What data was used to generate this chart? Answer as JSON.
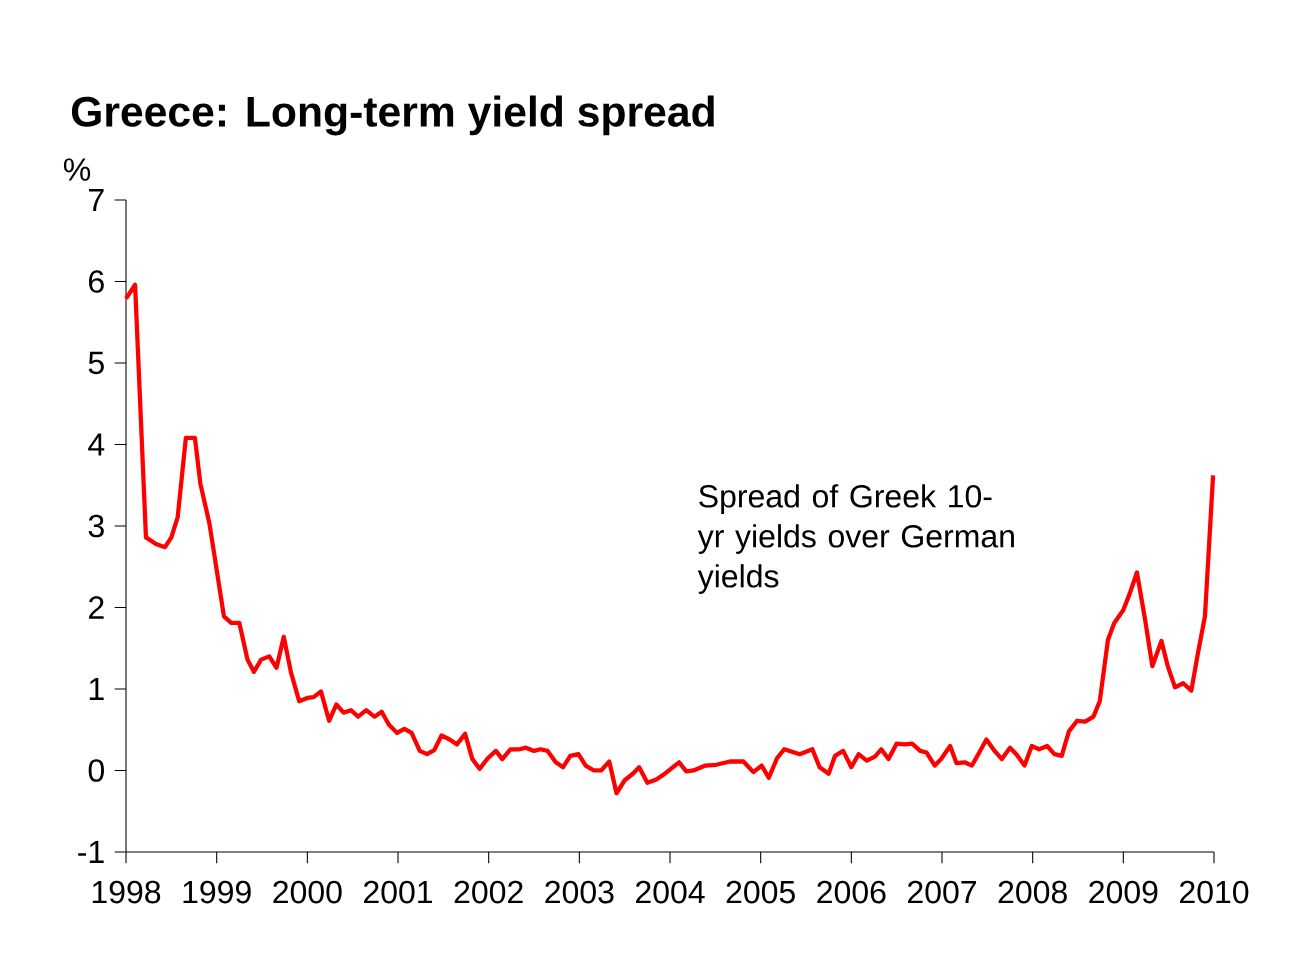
{
  "chart_data": {
    "type": "line",
    "title": "Greece: Long-term yield spread",
    "ylabel": "%",
    "annotations": [
      "Spread of Greek 10-yr yields over German yields"
    ],
    "series": [
      {
        "color": "#ff0000",
        "x": [
          1998.0,
          1998.1,
          1998.22,
          1998.33,
          1998.43,
          1998.5,
          1998.57,
          1998.66,
          1998.76,
          1998.82,
          1998.92,
          1999.08,
          1999.16,
          1999.25,
          1999.34,
          1999.41,
          1999.49,
          1999.58,
          1999.66,
          1999.74,
          1999.82,
          1999.91,
          2000.0,
          2000.07,
          2000.15,
          2000.24,
          2000.32,
          2000.4,
          2000.48,
          2000.56,
          2000.65,
          2000.74,
          2000.82,
          2000.9,
          2000.99,
          2001.07,
          2001.15,
          2001.24,
          2001.32,
          2001.4,
          2001.48,
          2001.57,
          2001.65,
          2001.74,
          2001.82,
          2001.9,
          2001.99,
          2002.08,
          2002.15,
          2002.24,
          2002.34,
          2002.41,
          2002.5,
          2002.57,
          2002.65,
          2002.74,
          2002.82,
          2002.9,
          2002.99,
          2003.07,
          2003.16,
          2003.24,
          2003.33,
          2003.41,
          2003.5,
          2003.59,
          2003.66,
          2003.75,
          2003.85,
          2003.93,
          2004.1,
          2004.18,
          2004.26,
          2004.39,
          2004.51,
          2004.66,
          2004.81,
          2004.92,
          2005.01,
          2005.09,
          2005.18,
          2005.26,
          2005.43,
          2005.57,
          2005.65,
          2005.75,
          2005.82,
          2005.91,
          2006.0,
          2006.08,
          2006.17,
          2006.26,
          2006.33,
          2006.41,
          2006.5,
          2006.59,
          2006.67,
          2006.76,
          2006.83,
          2006.92,
          2006.99,
          2007.09,
          2007.16,
          2007.25,
          2007.33,
          2007.4,
          2007.49,
          2007.58,
          2007.66,
          2007.75,
          2007.82,
          2007.91,
          2007.99,
          2008.07,
          2008.16,
          2008.24,
          2008.32,
          2008.4,
          2008.49,
          2008.58,
          2008.67,
          2008.74,
          2008.83,
          2008.9,
          2009.0,
          2009.07,
          2009.15,
          2009.24,
          2009.32,
          2009.42,
          2009.49,
          2009.57,
          2009.66,
          2009.75,
          2009.82,
          2009.9,
          2009.99
        ],
        "values": [
          5.79,
          5.96,
          2.86,
          2.78,
          2.74,
          2.86,
          3.11,
          4.08,
          4.08,
          3.52,
          3.03,
          1.89,
          1.81,
          1.81,
          1.36,
          1.21,
          1.36,
          1.4,
          1.26,
          1.64,
          1.2,
          0.85,
          0.89,
          0.9,
          0.97,
          0.61,
          0.81,
          0.71,
          0.74,
          0.66,
          0.74,
          0.66,
          0.72,
          0.56,
          0.46,
          0.51,
          0.46,
          0.24,
          0.2,
          0.25,
          0.43,
          0.38,
          0.32,
          0.45,
          0.14,
          0.02,
          0.15,
          0.24,
          0.14,
          0.26,
          0.26,
          0.28,
          0.24,
          0.26,
          0.24,
          0.1,
          0.04,
          0.18,
          0.2,
          0.06,
          0.0,
          0.0,
          0.11,
          -0.28,
          -0.12,
          -0.04,
          0.04,
          -0.15,
          -0.11,
          -0.05,
          0.1,
          -0.01,
          0.0,
          0.06,
          0.07,
          0.11,
          0.11,
          -0.02,
          0.06,
          -0.09,
          0.15,
          0.26,
          0.2,
          0.26,
          0.04,
          -0.04,
          0.18,
          0.24,
          0.04,
          0.2,
          0.12,
          0.17,
          0.26,
          0.14,
          0.33,
          0.32,
          0.33,
          0.24,
          0.22,
          0.06,
          0.14,
          0.3,
          0.09,
          0.1,
          0.06,
          0.2,
          0.38,
          0.24,
          0.14,
          0.28,
          0.2,
          0.06,
          0.3,
          0.26,
          0.3,
          0.2,
          0.18,
          0.48,
          0.61,
          0.6,
          0.66,
          0.85,
          1.6,
          1.81,
          1.97,
          2.17,
          2.43,
          1.85,
          1.28,
          1.59,
          1.28,
          1.02,
          1.07,
          0.98,
          1.42,
          1.89,
          3.62
        ]
      }
    ],
    "xlim": [
      1998,
      2010
    ],
    "xticks": [
      1998,
      1999,
      2000,
      2001,
      2002,
      2003,
      2004,
      2005,
      2006,
      2007,
      2008,
      2009,
      2010
    ],
    "ylim": [
      -1,
      7
    ],
    "yticks": [
      -1,
      0,
      1,
      2,
      3,
      4,
      5,
      6,
      7
    ],
    "grid": false,
    "legend": false,
    "marker": "none",
    "line_style": "solid"
  }
}
